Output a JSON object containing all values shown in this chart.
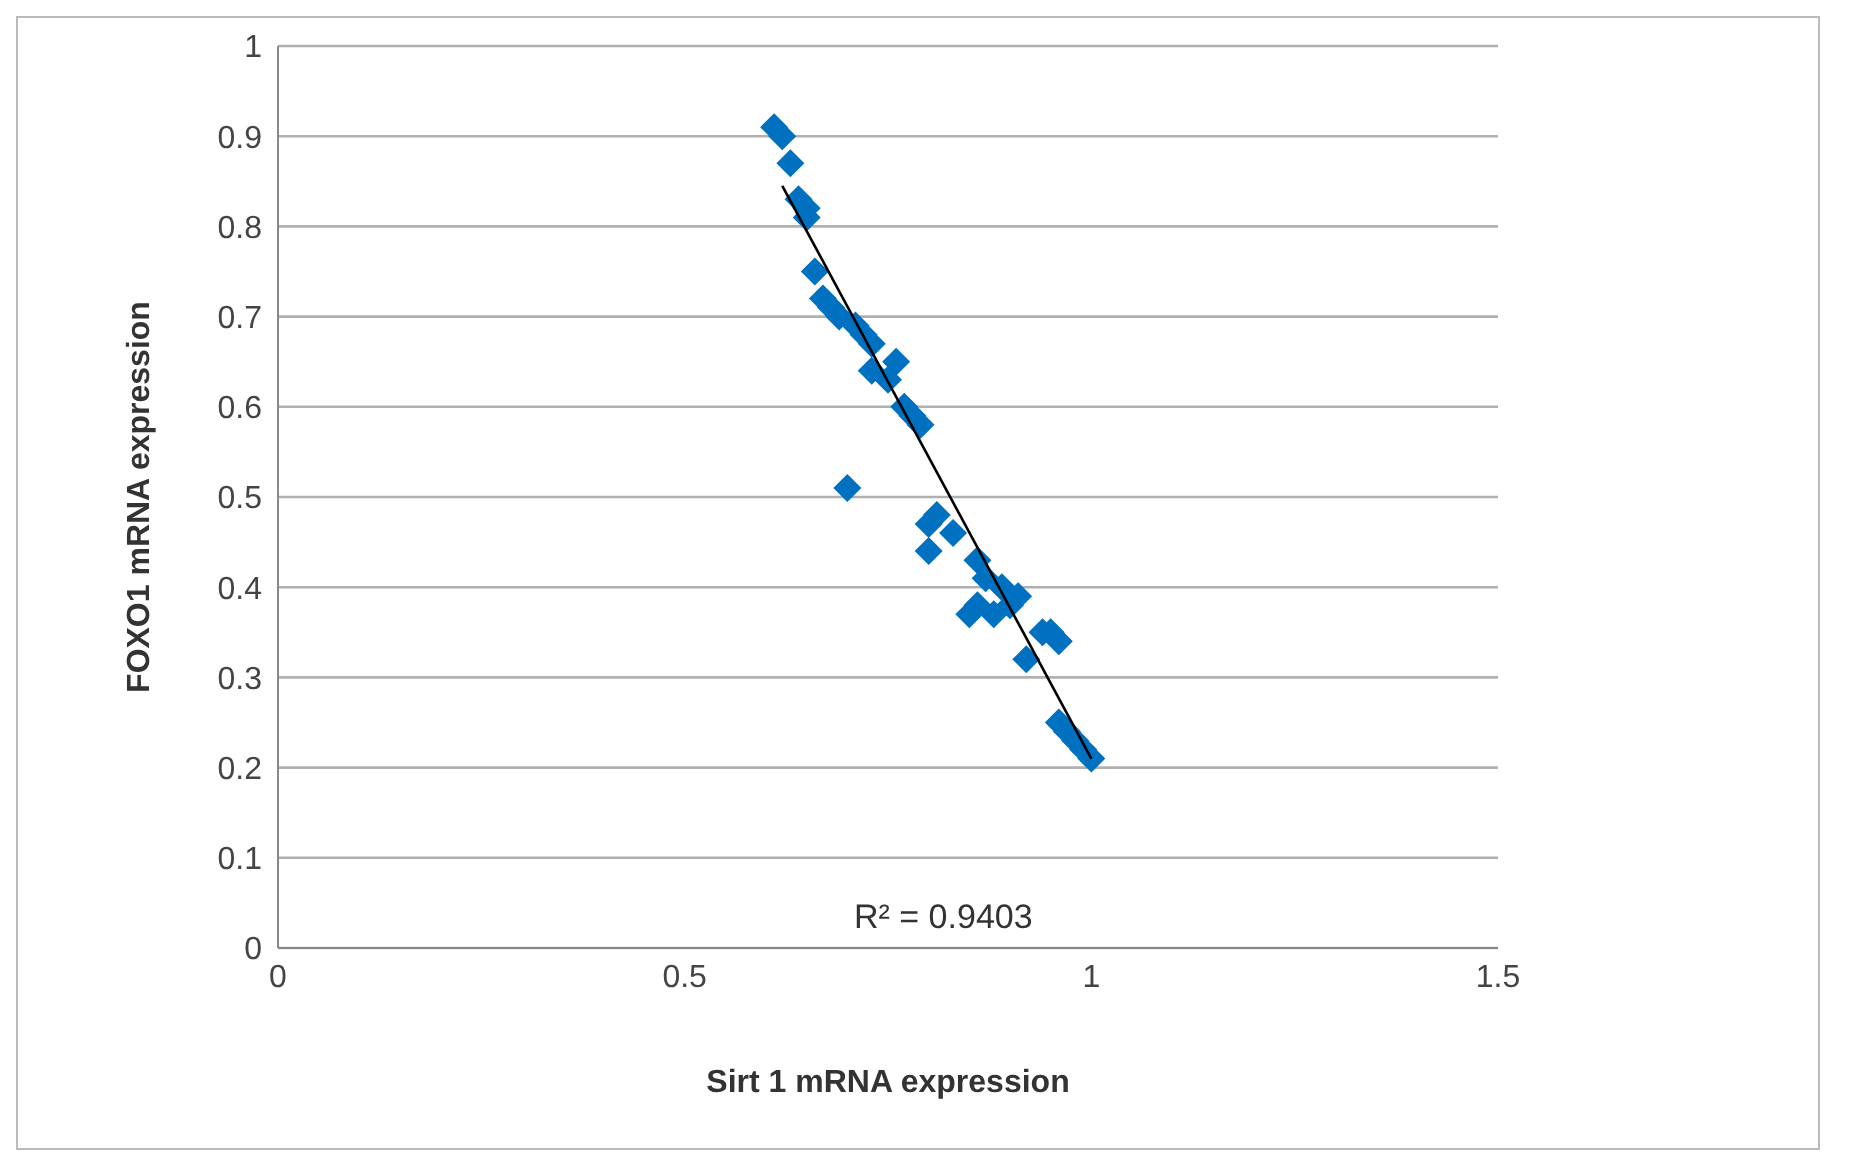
{
  "chart_data": {
    "type": "scatter",
    "xlabel": "Sirt 1 mRNA expression",
    "ylabel": "FOXO1 mRNA expression",
    "xlim": [
      0,
      1.5
    ],
    "xticks": [
      0,
      0.5,
      1,
      1.5
    ],
    "ylim": [
      0,
      1
    ],
    "yticks": [
      0,
      0.1,
      0.2,
      0.3,
      0.4,
      0.5,
      0.6,
      0.7,
      0.8,
      0.9,
      1
    ],
    "grid": "y",
    "annotations": [
      "R² = 0.9403"
    ],
    "series": [
      {
        "marker": "diamond",
        "color": "#0070c0",
        "x": [
          0.61,
          0.62,
          0.63,
          0.64,
          0.65,
          0.65,
          0.66,
          0.67,
          0.68,
          0.69,
          0.71,
          0.72,
          0.73,
          0.73,
          0.75,
          0.76,
          0.77,
          0.78,
          0.79,
          0.7,
          0.8,
          0.81,
          0.83,
          0.8,
          0.86,
          0.87,
          0.89,
          0.9,
          0.91,
          0.85,
          0.86,
          0.88,
          0.92,
          0.94,
          0.95,
          0.96,
          0.96,
          0.97,
          0.98,
          0.99,
          1.0
        ],
        "values": [
          0.91,
          0.9,
          0.87,
          0.83,
          0.82,
          0.81,
          0.75,
          0.72,
          0.71,
          0.7,
          0.69,
          0.68,
          0.67,
          0.64,
          0.63,
          0.65,
          0.6,
          0.59,
          0.58,
          0.51,
          0.47,
          0.48,
          0.46,
          0.44,
          0.43,
          0.41,
          0.4,
          0.38,
          0.39,
          0.37,
          0.38,
          0.37,
          0.32,
          0.35,
          0.35,
          0.34,
          0.25,
          0.24,
          0.23,
          0.22,
          0.21
        ]
      },
      {
        "type": "line",
        "marker": "none",
        "color": "#000000",
        "x": [
          0.62,
          1.0
        ],
        "values": [
          0.845,
          0.21
        ]
      }
    ]
  }
}
